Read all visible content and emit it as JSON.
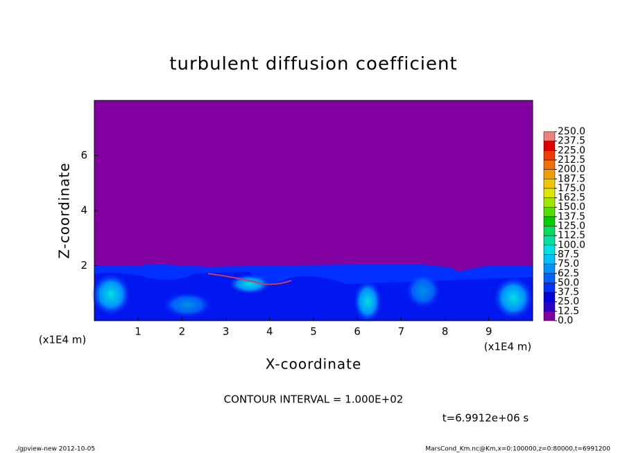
{
  "chart_data": {
    "type": "contour",
    "title": "turbulent diffusion coefficient",
    "x_label": "X-coordinate",
    "y_label": "Z-coordinate",
    "x_unit": "(x1E4 m)",
    "y_unit": "(x1E4 m)",
    "xlim": [
      0,
      10
    ],
    "ylim": [
      0,
      8
    ],
    "xticks": [
      1,
      2,
      3,
      4,
      5,
      6,
      7,
      8,
      9
    ],
    "yticks": [
      2,
      4,
      6
    ],
    "levels": [
      {
        "value": 0,
        "label": "0.0"
      },
      {
        "value": 12.5,
        "label": "12.5"
      },
      {
        "value": 25,
        "label": "25.0"
      },
      {
        "value": 37.5,
        "label": "37.5"
      },
      {
        "value": 50,
        "label": "50.0"
      },
      {
        "value": 62.5,
        "label": "62.5"
      },
      {
        "value": 75,
        "label": "75.0"
      },
      {
        "value": 87.5,
        "label": "87.5"
      },
      {
        "value": 100,
        "label": "100.0"
      },
      {
        "value": 112.5,
        "label": "112.5"
      },
      {
        "value": 125,
        "label": "125.0"
      },
      {
        "value": 137.5,
        "label": "137.5"
      },
      {
        "value": 150,
        "label": "150.0"
      },
      {
        "value": 162.5,
        "label": "162.5"
      },
      {
        "value": 175,
        "label": "175.0"
      },
      {
        "value": 187.5,
        "label": "187.5"
      },
      {
        "value": 200,
        "label": "200.0"
      },
      {
        "value": 212.5,
        "label": "212.5"
      },
      {
        "value": 225,
        "label": "225.0"
      },
      {
        "value": 237.5,
        "label": "237.5"
      },
      {
        "value": 250,
        "label": "250.0"
      }
    ],
    "colors": [
      "#8000a0",
      "#2800c8",
      "#0000e0",
      "#0030ff",
      "#0060ff",
      "#0090ff",
      "#00c0ff",
      "#00e0e0",
      "#00e0a0",
      "#00dc60",
      "#00d000",
      "#50e000",
      "#a0e600",
      "#e0e600",
      "#f0c800",
      "#f0a000",
      "#f07000",
      "#f03c00",
      "#e00000",
      "#f08080"
    ],
    "contour_interval": "CONTOUR INTERVAL = 1.000E+02",
    "time_label": "t=6.9912e+06 s",
    "footer_left": "./gpview-new  2012-10-05",
    "footer_right": "MarsCond_Km.nc@Km,x=0:100000,z=0:80000,t=6991200"
  }
}
